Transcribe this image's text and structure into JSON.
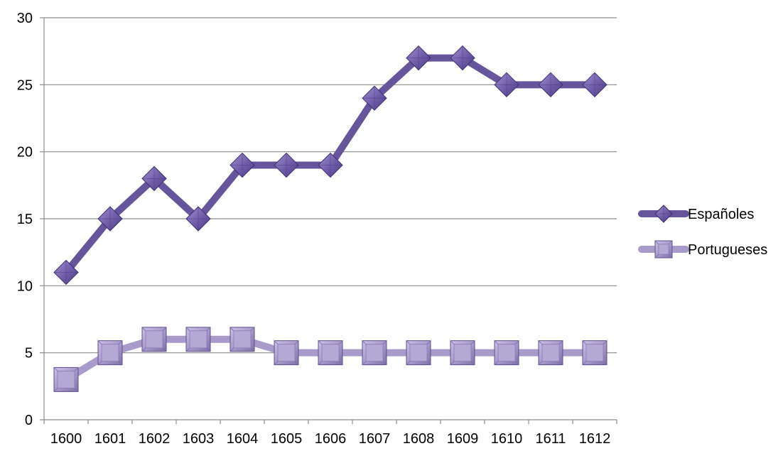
{
  "chart_data": {
    "type": "line",
    "title": "",
    "xlabel": "",
    "ylabel": "",
    "categories": [
      "1600",
      "1601",
      "1602",
      "1603",
      "1604",
      "1605",
      "1606",
      "1607",
      "1608",
      "1609",
      "1610",
      "1611",
      "1612"
    ],
    "ylim": [
      0,
      30
    ],
    "yticks": [
      0,
      5,
      10,
      15,
      20,
      25,
      30
    ],
    "grid": "horizontal",
    "legend_position": "right",
    "series": [
      {
        "name": "Españoles",
        "values": [
          11,
          15,
          18,
          15,
          19,
          19,
          19,
          24,
          27,
          27,
          25,
          25,
          25
        ],
        "color": "#66559a",
        "marker_color": "#7a67b0",
        "marker": "diamond"
      },
      {
        "name": "Portugueses",
        "values": [
          3,
          5,
          6,
          6,
          6,
          5,
          5,
          5,
          5,
          5,
          5,
          5,
          5
        ],
        "color": "#a99bc9",
        "marker_color": "#a192c4",
        "marker": "square"
      }
    ]
  }
}
